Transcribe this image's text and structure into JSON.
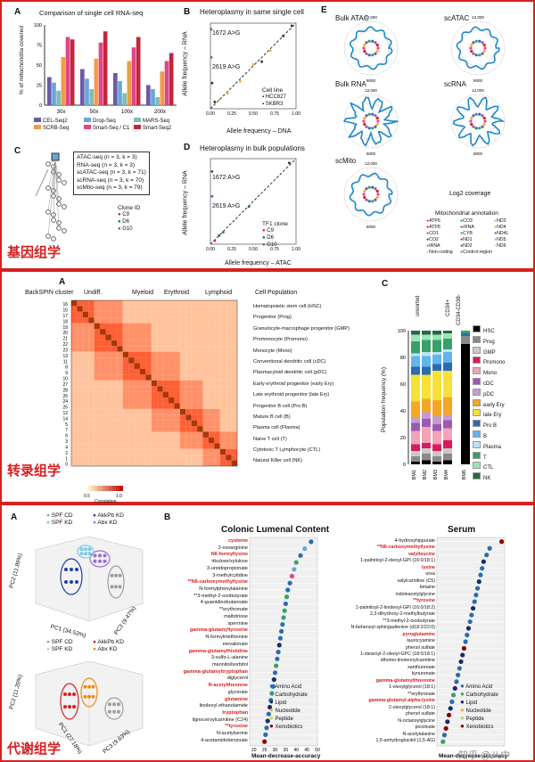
{
  "sections": {
    "genomics": "基因组学",
    "transcriptomics": "转录组学",
    "metabolomics": "代谢组学"
  },
  "panelA1": {
    "letter": "A",
    "title": "Comparison of single cell RNA-seq",
    "ylabel": "% of mitochondria covered",
    "chart_data": {
      "type": "bar",
      "categories": [
        "30x",
        "50x",
        "100x",
        "200x"
      ],
      "ylim": [
        0,
        100
      ],
      "series": [
        {
          "name": "CEL-Seq2",
          "color": "#6b5aa8",
          "values": [
            35,
            45,
            40,
            25
          ]
        },
        {
          "name": "Drop-Seq",
          "color": "#6aa6d9",
          "values": [
            28,
            33,
            30,
            20
          ]
        },
        {
          "name": "MARS-Seq",
          "color": "#7bbfb8",
          "values": [
            18,
            20,
            15,
            10
          ]
        },
        {
          "name": "SCRB-Seq",
          "color": "#f29b48",
          "values": [
            60,
            58,
            55,
            42
          ]
        },
        {
          "name": "Smart-Seq / C1",
          "color": "#e2458a",
          "values": [
            85,
            78,
            72,
            55
          ]
        },
        {
          "name": "Smart-Seq2",
          "color": "#c0283c",
          "values": [
            82,
            92,
            85,
            65
          ]
        }
      ]
    }
  },
  "panelB1": {
    "letter": "B",
    "title": "Heteroplasmy in same single cell",
    "ylabel": "Allele frequency – RNA",
    "xlabel": "Allele frequency – DNA",
    "ann1": "1672 A>G",
    "ann2": "2619 A>G",
    "legend_title": "Cell line",
    "legend": [
      "HCC827",
      "SKBR3"
    ],
    "ticks": [
      "0.00",
      "0.25",
      "0.50",
      "0.75",
      "1.00"
    ]
  },
  "panelC1": {
    "letter": "C",
    "lines": [
      "ATAC-seq (n = 3, k = 3)",
      "RNA-seq (n = 3, k = 3)",
      "scATAC-seq (n = 3, k = 71)",
      "scRNA-seq (n = 3, k = 70)",
      "scMito-seq (n = 3, k = 79)"
    ],
    "clone_title": "Clone ID",
    "clones": [
      "C9",
      "D6",
      "G10"
    ]
  },
  "panelD1": {
    "letter": "D",
    "title": "Heteroplasmy in bulk populations",
    "ylabel": "Allele frequency – RNA",
    "xlabel": "Allele frequency – ATAC",
    "ann1": "1672 A>G",
    "ann2": "2619 A>G",
    "legend_title": "TF1 clone",
    "legend": [
      "C9",
      "D6",
      "G10"
    ],
    "ticks": [
      "0.00",
      "0.25",
      "0.50",
      "0.75",
      "1.00"
    ]
  },
  "panelE1": {
    "letter": "E",
    "labels": [
      "Bulk ATAC",
      "scATAC",
      "Bulk RNA",
      "scRNA",
      "scMito"
    ],
    "coverage": "Log2 coverage",
    "ring": [
      "12,000",
      "16,000",
      "4000",
      "8000"
    ],
    "annot_title": "Mitochondrial annotation",
    "annot": [
      "ATP6",
      "CO3",
      "ND3",
      "ATP8",
      "rRNA",
      "ND4",
      "CO1",
      "CYB",
      "ND4L",
      "CO2",
      "ND1",
      "ND5",
      "tRNA",
      "ND2",
      "ND6",
      "Non-coding",
      "Control-region"
    ]
  },
  "panelA2": {
    "letter": "A",
    "cluster_label": "BackSPIN cluster",
    "groups": [
      "Undiff.",
      "Myeloid",
      "Erythroid",
      "Lymphoid"
    ],
    "pop_header": "Cell Population",
    "rows": [
      "16",
      "15",
      "17",
      "18",
      "19",
      "20",
      "21",
      "22",
      "23",
      "13",
      "11",
      "8",
      "9",
      "10",
      "27",
      "28",
      "26",
      "24",
      "25",
      "12",
      "14",
      "5",
      "7",
      "6",
      "3",
      "4",
      "2",
      "1",
      "0"
    ],
    "populations": [
      "Hematopoietic stem cell (HSC)",
      "Progenitor (Prog)",
      "Granulocyte-macrophage progenitor (GMP)",
      "Promonocyte (Promono)",
      "Monocyte (Mono)",
      "Conventional dendritic cell (cDC)",
      "Plasmacytoid dendritic cell (pDC)",
      "Early erythroid progenitor (early Ery)",
      "Late erythroid progenitor (late Ery)",
      "Progenitor B cell (Pro B)",
      "Mature B cell (B)",
      "Plasma cell (Plasma)",
      "Naive T cell (T)",
      "Cytotoxic T Lymphocyte (CTL)",
      "Natural Killer cell (NK)"
    ],
    "colorbar_label": "Correlation",
    "colorbar_min": "0.5",
    "colorbar_max": "1.0"
  },
  "panelC2": {
    "letter": "C",
    "ylabel": "Population frequency (%)",
    "ticks": [
      "0",
      "20",
      "40",
      "60",
      "80",
      "100"
    ],
    "top": [
      "unsorted",
      "CD34+",
      "CD34-CD38-"
    ],
    "bars": [
      "BM1",
      "BM2",
      "BM3",
      "BM4",
      "BM5"
    ],
    "chart_data": {
      "type": "bar",
      "categories": [
        "BM1",
        "BM2",
        "BM3",
        "BM4",
        "BM5"
      ],
      "series": [
        {
          "name": "HSC",
          "color": "#000000",
          "values": [
            2,
            3,
            2,
            3,
            90
          ]
        },
        {
          "name": "Prog",
          "color": "#8a8a8a",
          "values": [
            4,
            5,
            4,
            5,
            6
          ]
        },
        {
          "name": "GMP",
          "color": "#c9c9c9",
          "values": [
            4,
            4,
            4,
            4,
            0
          ]
        },
        {
          "name": "Promono",
          "color": "#d81b60",
          "values": [
            5,
            4,
            5,
            6,
            0
          ]
        },
        {
          "name": "Mono",
          "color": "#f2a3b5",
          "values": [
            10,
            12,
            10,
            9,
            0
          ]
        },
        {
          "name": "cDC",
          "color": "#9b59b6",
          "values": [
            6,
            6,
            5,
            6,
            0
          ]
        },
        {
          "name": "pDC",
          "color": "#c39bd3",
          "values": [
            4,
            5,
            6,
            4,
            0
          ]
        },
        {
          "name": "early Ery",
          "color": "#f5a623",
          "values": [
            12,
            10,
            12,
            13,
            0
          ]
        },
        {
          "name": "late Ery",
          "color": "#f7e135",
          "values": [
            20,
            18,
            22,
            20,
            0
          ]
        },
        {
          "name": "Pro B",
          "color": "#2b6cb0",
          "values": [
            6,
            6,
            5,
            6,
            2
          ]
        },
        {
          "name": "B",
          "color": "#63b3ed",
          "values": [
            8,
            8,
            7,
            8,
            0
          ]
        },
        {
          "name": "Plasma",
          "color": "#bee3f8",
          "values": [
            2,
            3,
            2,
            2,
            0
          ]
        },
        {
          "name": "T",
          "color": "#38a169",
          "values": [
            9,
            9,
            9,
            8,
            2
          ]
        },
        {
          "name": "CTL",
          "color": "#9ae6b4",
          "values": [
            5,
            4,
            4,
            4,
            0
          ]
        },
        {
          "name": "NK",
          "color": "#276749",
          "values": [
            3,
            3,
            3,
            2,
            0
          ]
        }
      ]
    }
  },
  "panelA3": {
    "letter": "A",
    "legend1": [
      "SPF CD",
      "AkkPb KD",
      "SPF KD",
      "Abx KD"
    ],
    "legend2": [
      "SPF CD",
      "AkkPb KD",
      "SPF KD",
      "Abx KD"
    ],
    "pc2a": "PC2 (11.89%)",
    "pc1a": "PC1 (34.53%)",
    "pc3a": "PC3 (9.47%)",
    "pc2b": "PC2 (11.20%)",
    "pc1b": "PC1 (27.18%)",
    "pc3b": "PC3 (9.63%)"
  },
  "panelB3": {
    "letter": "B",
    "title1": "Colonic Lumenal Content",
    "title2": "Serum",
    "xlabel": "Mean-decrease-accuracy",
    "ticks1": [
      "20",
      "25",
      "30",
      "35",
      "40",
      "45",
      "50"
    ],
    "legend": [
      "Amino Acid",
      "Carbohydrate",
      "Lipid",
      "Nucleotide",
      "Peptide",
      "Xenobiotics"
    ],
    "colonic": [
      {
        "n": "cysteine",
        "r": true
      },
      {
        "n": "2-oxoarginine",
        "r": false
      },
      {
        "n": "N6-formyllysine",
        "r": true
      },
      {
        "n": "ribulose/xylulose",
        "r": false
      },
      {
        "n": "3-ureidopropionate",
        "r": false
      },
      {
        "n": "3-methylcytidine",
        "r": false
      },
      {
        "n": "**N6-carboxymethyllysine",
        "r": true
      },
      {
        "n": "N-formylphenylalanine",
        "r": false
      },
      {
        "n": "**3-methyl-2-oxobutyrate",
        "r": false
      },
      {
        "n": "4-guanidinobutanoate",
        "r": false
      },
      {
        "n": "**erythronate",
        "r": false
      },
      {
        "n": "maltotriose",
        "r": false
      },
      {
        "n": "spermine",
        "r": false
      },
      {
        "n": "gamma-glutamyltyrosine",
        "r": true
      },
      {
        "n": "N-formylmethionine",
        "r": false
      },
      {
        "n": "mevalonate",
        "r": false
      },
      {
        "n": "gamma-glutamylhistidine",
        "r": true
      },
      {
        "n": "3-sulfo-L-alanine",
        "r": false
      },
      {
        "n": "mannitol/sorbitol",
        "r": false
      },
      {
        "n": "gamma-glutamyltryptophan",
        "r": true
      },
      {
        "n": "diglycerol",
        "r": false
      },
      {
        "n": "N-acetyltheonine",
        "r": true
      },
      {
        "n": "glycerate",
        "r": false
      },
      {
        "n": "glutamine",
        "r": true
      },
      {
        "n": "linoleoyl ethanolamide",
        "r": false
      },
      {
        "n": "tryptophan",
        "r": true
      },
      {
        "n": "lignoceroylcarnitine (C24)",
        "r": false
      },
      {
        "n": "**tyrosine",
        "r": true
      },
      {
        "n": "N-acetylserine",
        "r": false
      },
      {
        "n": "4-acetamidobenzoate",
        "r": false
      }
    ],
    "colonic_vals": [
      47,
      44,
      42,
      40,
      39,
      38,
      37,
      36,
      35.5,
      35,
      34.5,
      34,
      33.5,
      33,
      32.5,
      32,
      31.5,
      31,
      30.5,
      30,
      29.5,
      29,
      28.5,
      28,
      27.5,
      27,
      26.5,
      26,
      25.5,
      25
    ],
    "colonic_cols": [
      "#2b6cb0",
      "#6aa6d9",
      "#2b6cb0",
      "#38a169",
      "#6aa6d9",
      "#e2458a",
      "#2b6cb0",
      "#2b6cb0",
      "#38a169",
      "#2b6cb0",
      "#38a169",
      "#38a169",
      "#2b6cb0",
      "#2b6cb0",
      "#2b6cb0",
      "#1a2b6d",
      "#2b6cb0",
      "#2b6cb0",
      "#38a169",
      "#2b6cb0",
      "#1a2b6d",
      "#2b6cb0",
      "#38a169",
      "#2b6cb0",
      "#1a2b6d",
      "#2b6cb0",
      "#1a2b6d",
      "#2b6cb0",
      "#2b6cb0",
      "#8b0000"
    ],
    "serum": [
      {
        "n": "4-hydroxyhippurate",
        "r": false
      },
      {
        "n": "**N6-carboxymethyllysine",
        "r": true
      },
      {
        "n": "valylleucine",
        "r": true
      },
      {
        "n": "1-palmitoyl-2-oleoyl-GPI (16:0/18:1)",
        "r": false
      },
      {
        "n": "lysine",
        "r": true
      },
      {
        "n": "urea",
        "r": false
      },
      {
        "n": "valylcarnitine (C5)",
        "r": false
      },
      {
        "n": "betaine",
        "r": false
      },
      {
        "n": "indoleacetylglycine",
        "r": false
      },
      {
        "n": "**tyrosine",
        "r": true
      },
      {
        "n": "1-palmitoyl-2-linoleoyl-GPI (16:0/18:2)",
        "r": false
      },
      {
        "n": "2,3-dihydroxy-2-methylbutyrate",
        "r": false
      },
      {
        "n": "**3-methyl-2-oxobutyrate",
        "r": false
      },
      {
        "n": "N-behenoyl-sphingadienine (d18:2/22:0)",
        "r": false
      },
      {
        "n": "pyroglutamine",
        "r": true
      },
      {
        "n": "taurocyamine",
        "r": false
      },
      {
        "n": "phenol sulfate",
        "r": false
      },
      {
        "n": "1-stearoyl-2-oleoyl-GPC (18:0/18:1)",
        "r": false
      },
      {
        "n": "dihomo-linolenoylcarnitine",
        "r": false
      },
      {
        "n": "xanthurenate",
        "r": false
      },
      {
        "n": "kynurenate",
        "r": false
      },
      {
        "n": "gamma-glutamylthreonine",
        "r": true
      },
      {
        "n": "1-oleoylglycerol (18:1)",
        "r": false
      },
      {
        "n": "**erythronate",
        "r": false
      },
      {
        "n": "gamma-glutamyl-alpha-lysine",
        "r": true
      },
      {
        "n": "2-oleoylglycerol (18:1)",
        "r": false
      },
      {
        "n": "phenol sulfate",
        "r": false
      },
      {
        "n": "N-octanoylglycine",
        "r": false
      },
      {
        "n": "picolinate",
        "r": false
      },
      {
        "n": "N-acetylalanine",
        "r": false
      },
      {
        "n": "1,5-anhydroglucitol (1,5-AG)",
        "r": false
      }
    ],
    "serum_vals": [
      98,
      90,
      88,
      86,
      85,
      84,
      83,
      82,
      81,
      80,
      79,
      78,
      77,
      76,
      75,
      74,
      73,
      72,
      71,
      70,
      69,
      68,
      67,
      66,
      65,
      64,
      63,
      62,
      61,
      60,
      59
    ],
    "serum_cols": [
      "#8b0000",
      "#2b6cb0",
      "#2b6cb0",
      "#1a2b6d",
      "#2b6cb0",
      "#2b6cb0",
      "#1a2b6d",
      "#2b6cb0",
      "#2b6cb0",
      "#2b6cb0",
      "#1a2b6d",
      "#2b6cb0",
      "#2b6cb0",
      "#1a2b6d",
      "#2b6cb0",
      "#2b6cb0",
      "#8b0000",
      "#1a2b6d",
      "#1a2b6d",
      "#2b6cb0",
      "#2b6cb0",
      "#2b6cb0",
      "#1a2b6d",
      "#38a169",
      "#2b6cb0",
      "#1a2b6d",
      "#8b0000",
      "#1a2b6d",
      "#8b0000",
      "#2b6cb0",
      "#38a169"
    ],
    "watermark": "知乎 @八中"
  }
}
